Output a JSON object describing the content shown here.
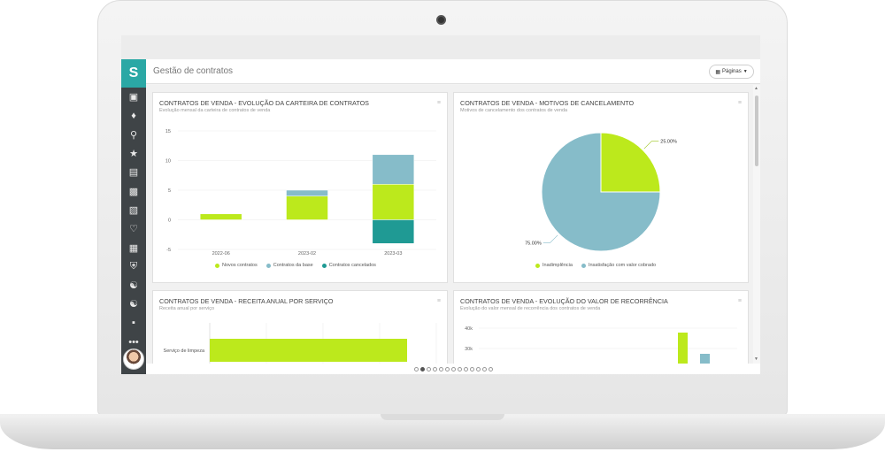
{
  "header": {
    "title": "Gestão de contratos",
    "pages_label": "Páginas",
    "pages_icon": "grid-icon"
  },
  "sidebar": {
    "logo": "S",
    "icons": [
      "contacts-icon",
      "bell-icon",
      "search-icon",
      "star-icon",
      "archive-icon",
      "briefcase-icon",
      "chart-icon",
      "heart-icon",
      "box-icon",
      "shield-icon",
      "group-icon",
      "handshake-icon",
      "bag-icon",
      "more-icon"
    ],
    "more_label": "•••"
  },
  "cards": {
    "carteira": {
      "title": "CONTRATOS DE VENDA - EVOLUÇÃO DA CARTEIRA DE CONTRATOS",
      "subtitle": "Evolução mensal da carteira de contratos de venda"
    },
    "motivos": {
      "title": "CONTRATOS DE VENDA - MOTIVOS DE CANCELAMENTO",
      "subtitle": "Motivos de cancelamento dos contratos de venda"
    },
    "receita": {
      "title": "CONTRATOS DE VENDA - RECEITA ANUAL POR SERVIÇO",
      "subtitle": "Receita anual por serviço"
    },
    "recorrencia": {
      "title": "CONTRATOS DE VENDA - EVOLUÇÃO DO VALOR DE RECORRÊNCIA",
      "subtitle": "Evolução do valor mensal de recorrência dos contratos de venda"
    }
  },
  "chart_data": [
    {
      "type": "bar",
      "stacked": true,
      "categories": [
        "2022-06",
        "2023-02",
        "2023-03"
      ],
      "series": [
        {
          "name": "Novos contratos",
          "values": [
            1,
            4,
            6
          ],
          "color": "#bce91c"
        },
        {
          "name": "Contratos da base",
          "values": [
            0,
            1,
            5
          ],
          "color": "#86bcc9"
        },
        {
          "name": "Contratos cancelados",
          "values": [
            0,
            0,
            -4
          ],
          "color": "#1f9a94"
        }
      ],
      "yticks": [
        15,
        10,
        5,
        0,
        -5
      ],
      "ylim": [
        -5,
        15
      ],
      "grid": true,
      "legend": "bottom"
    },
    {
      "type": "pie",
      "slices": [
        {
          "name": "Inadimplência",
          "value": 25.0,
          "label": "25.00%",
          "color": "#bce91c"
        },
        {
          "name": "Insatisfação com valor cobrado",
          "value": 75.0,
          "label": "75.00%",
          "color": "#86bcc9"
        }
      ],
      "legend": "bottom"
    },
    {
      "type": "bar",
      "orientation": "horizontal",
      "categories": [
        "Serviço de limpeza"
      ],
      "values": [
        1
      ],
      "color": "#bce91c"
    },
    {
      "type": "bar",
      "yticks": [
        "40k",
        "30k"
      ],
      "series": [
        {
          "color": "#bce91c"
        },
        {
          "color": "#86bcc9"
        }
      ]
    }
  ],
  "pagination": {
    "count": 13,
    "active": 1
  }
}
